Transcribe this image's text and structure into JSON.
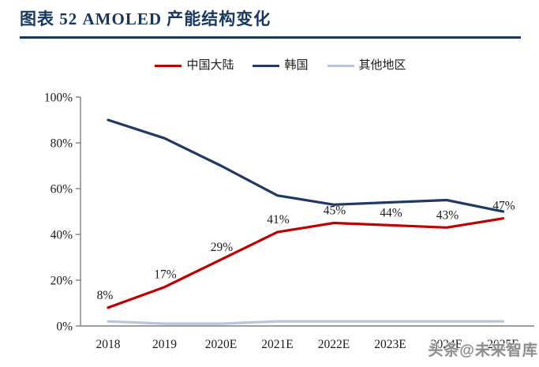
{
  "header": {
    "title": "图表 52  AMOLED 产能结构变化",
    "accent_color": "#17375e"
  },
  "legend": [
    {
      "label": "中国大陆",
      "color": "#c00000"
    },
    {
      "label": "韩国",
      "color": "#1f3a63"
    },
    {
      "label": "其他地区",
      "color": "#b9c5d9"
    }
  ],
  "watermark": "头条@未来智库",
  "chart_data": {
    "type": "line",
    "title": "AMOLED 产能结构变化",
    "categories": [
      "2018",
      "2019",
      "2020E",
      "2021E",
      "2022E",
      "2023E",
      "2024E",
      "2025E"
    ],
    "series": [
      {
        "name": "中国大陆",
        "color": "#c00000",
        "values": [
          8,
          17,
          29,
          41,
          45,
          44,
          43,
          47
        ],
        "labeled": true
      },
      {
        "name": "韩国",
        "color": "#1f3a63",
        "values": [
          90,
          82,
          70,
          57,
          53,
          54,
          55,
          50
        ],
        "labeled": false
      },
      {
        "name": "其他地区",
        "color": "#b9c5d9",
        "values": [
          2,
          1,
          1,
          2,
          2,
          2,
          2,
          2
        ],
        "labeled": false
      }
    ],
    "data_labels": [
      "8%",
      "17%",
      "29%",
      "41%",
      "45%",
      "44%",
      "43%",
      "47%"
    ],
    "xlabel": "",
    "ylabel": "",
    "ylim": [
      0,
      100
    ],
    "yticks": [
      "0%",
      "20%",
      "40%",
      "60%",
      "80%",
      "100%"
    ],
    "grid": false,
    "legend_position": "top",
    "axis_color": "#7f7f7f"
  }
}
